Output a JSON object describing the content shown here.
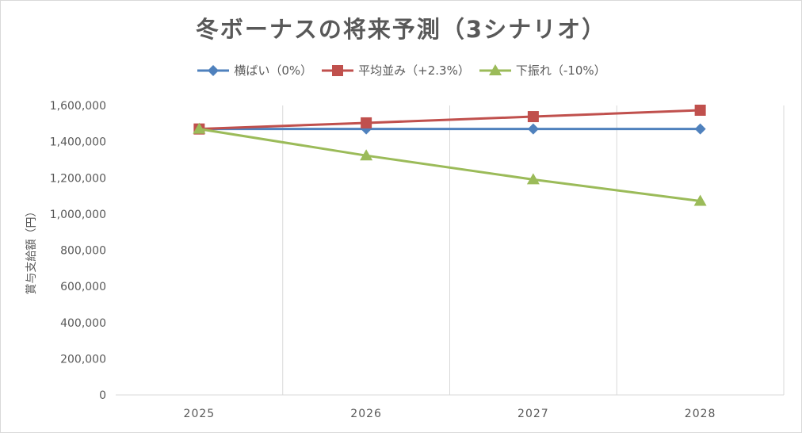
{
  "chart_data": {
    "type": "line",
    "title": "冬ボーナスの将来予測（3シナリオ）",
    "ylabel": "賞与支給額（円）",
    "xlabel": "",
    "categories": [
      "2025",
      "2026",
      "2027",
      "2028"
    ],
    "ylim": [
      0,
      1600000
    ],
    "yticks": [
      "0",
      "200,000",
      "400,000",
      "600,000",
      "800,000",
      "1,000,000",
      "1,200,000",
      "1,400,000",
      "1,600,000"
    ],
    "grid": "vertical",
    "legend": "top",
    "series": [
      {
        "name": "横ばい（0%）",
        "color": "#4f81bd",
        "marker": "diamond",
        "values": [
          1470000,
          1470000,
          1470000,
          1470000
        ]
      },
      {
        "name": "平均並み（+2.3%）",
        "color": "#c0504d",
        "marker": "square",
        "values": [
          1470000,
          1503810,
          1538398,
          1573781
        ]
      },
      {
        "name": "下振れ（-10%）",
        "color": "#9bbb59",
        "marker": "triangle",
        "values": [
          1470000,
          1323000,
          1190700,
          1071630
        ]
      }
    ]
  }
}
